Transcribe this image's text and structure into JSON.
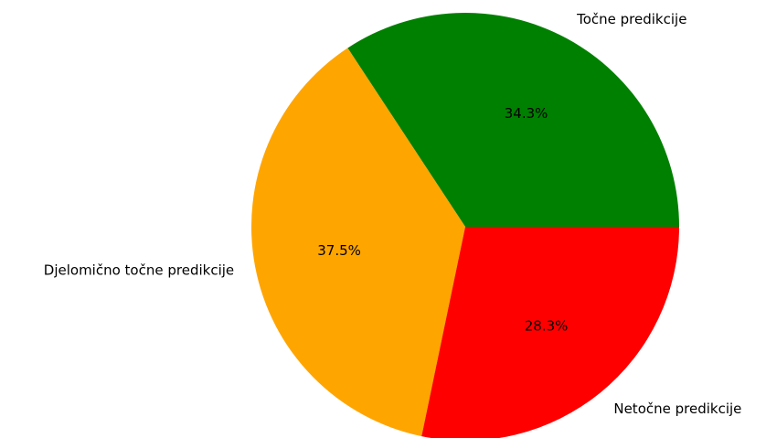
{
  "chart_data": {
    "type": "pie",
    "categories": [
      "Točne predikcije",
      "Djelomično točne predikcije",
      "Netočne predikcije"
    ],
    "values": [
      34.3,
      37.5,
      28.3
    ],
    "value_labels": [
      "34.3%",
      "37.5%",
      "28.3%"
    ],
    "colors": [
      "#008000",
      "#ffa500",
      "#ff0000"
    ],
    "start_angle_deg": 0,
    "direction": "counterclockwise",
    "legend": "none"
  }
}
